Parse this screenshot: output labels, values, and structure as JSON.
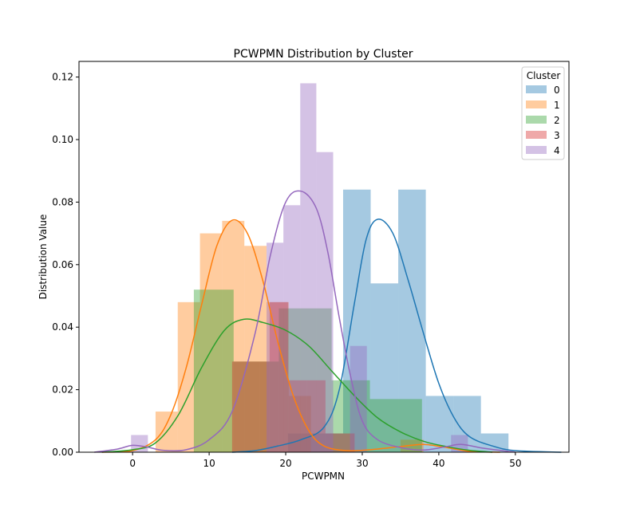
{
  "chart_data": {
    "type": "bar",
    "title": "PCWPMN Distribution by Cluster",
    "xlabel": "PCWPMN",
    "ylabel": "Distribution Value",
    "xlim": [
      -7,
      57
    ],
    "ylim": [
      0,
      0.125
    ],
    "x_ticks": [
      0,
      10,
      20,
      30,
      40,
      50
    ],
    "y_ticks": [
      0.0,
      0.02,
      0.04,
      0.06,
      0.08,
      0.1,
      0.12
    ],
    "grid": false,
    "legend_title": "Cluster",
    "legend_placement": "top-right",
    "series": [
      {
        "name": "0",
        "color": "#1f77b4",
        "bars": [
          {
            "x0": 13.0,
            "x1": 16.7,
            "y": 0.0
          },
          {
            "x0": 16.7,
            "x1": 20.3,
            "y": 0.0
          },
          {
            "x0": 20.3,
            "x1": 23.9,
            "y": 0.006
          },
          {
            "x0": 23.9,
            "x1": 27.5,
            "y": 0.006
          },
          {
            "x0": 27.5,
            "x1": 31.1,
            "y": 0.084
          },
          {
            "x0": 31.1,
            "x1": 34.7,
            "y": 0.054
          },
          {
            "x0": 34.7,
            "x1": 38.3,
            "y": 0.084
          },
          {
            "x0": 38.3,
            "x1": 41.9,
            "y": 0.018
          },
          {
            "x0": 41.9,
            "x1": 45.5,
            "y": 0.018
          },
          {
            "x0": 45.5,
            "x1": 49.1,
            "y": 0.006
          }
        ],
        "kde": [
          [
            13,
            0
          ],
          [
            16,
            0.0005
          ],
          [
            19,
            0.002
          ],
          [
            22,
            0.004
          ],
          [
            25,
            0.008
          ],
          [
            27,
            0.02
          ],
          [
            29,
            0.048
          ],
          [
            30.5,
            0.068
          ],
          [
            32,
            0.0745
          ],
          [
            34,
            0.07
          ],
          [
            36,
            0.055
          ],
          [
            38,
            0.038
          ],
          [
            40,
            0.022
          ],
          [
            42,
            0.011
          ],
          [
            44,
            0.005
          ],
          [
            47,
            0.002
          ],
          [
            50,
            0.0005
          ],
          [
            56,
            0
          ]
        ]
      },
      {
        "name": "1",
        "color": "#ff7f0e",
        "bars": [
          {
            "x0": 3.0,
            "x1": 5.9,
            "y": 0.013
          },
          {
            "x0": 5.9,
            "x1": 8.8,
            "y": 0.048
          },
          {
            "x0": 8.8,
            "x1": 11.7,
            "y": 0.07
          },
          {
            "x0": 11.7,
            "x1": 14.6,
            "y": 0.074
          },
          {
            "x0": 14.6,
            "x1": 17.5,
            "y": 0.066
          },
          {
            "x0": 17.5,
            "x1": 20.4,
            "y": 0.048
          },
          {
            "x0": 20.4,
            "x1": 23.3,
            "y": 0.018
          },
          {
            "x0": 35.0,
            "x1": 38.0,
            "y": 0.004
          }
        ],
        "kde": [
          [
            -4,
            0
          ],
          [
            0,
            0.0005
          ],
          [
            3,
            0.004
          ],
          [
            5,
            0.012
          ],
          [
            7,
            0.027
          ],
          [
            9,
            0.047
          ],
          [
            11,
            0.066
          ],
          [
            13,
            0.0742
          ],
          [
            15,
            0.07
          ],
          [
            17,
            0.055
          ],
          [
            19,
            0.035
          ],
          [
            21,
            0.018
          ],
          [
            23,
            0.007
          ],
          [
            25,
            0.002
          ],
          [
            28,
            0.0005
          ],
          [
            31,
            0.0008
          ],
          [
            35,
            0.0018
          ],
          [
            38,
            0.0025
          ],
          [
            41,
            0.0015
          ],
          [
            44,
            0.0003
          ],
          [
            48,
            0
          ]
        ]
      },
      {
        "name": "2",
        "color": "#2ca02c",
        "bars": [
          {
            "x0": 8.0,
            "x1": 13.2,
            "y": 0.052
          },
          {
            "x0": 13.2,
            "x1": 16.6,
            "y": 0.029
          },
          {
            "x0": 16.6,
            "x1": 19.1,
            "y": 0.029
          },
          {
            "x0": 19.1,
            "x1": 22.6,
            "y": 0.046
          },
          {
            "x0": 22.6,
            "x1": 26.0,
            "y": 0.046
          },
          {
            "x0": 26.0,
            "x1": 28.4,
            "y": 0.023
          },
          {
            "x0": 28.4,
            "x1": 31.0,
            "y": 0.023
          },
          {
            "x0": 31.0,
            "x1": 37.8,
            "y": 0.017
          }
        ],
        "kde": [
          [
            -4,
            0
          ],
          [
            0,
            0.0008
          ],
          [
            3,
            0.003
          ],
          [
            6,
            0.012
          ],
          [
            9,
            0.027
          ],
          [
            12,
            0.039
          ],
          [
            14.5,
            0.0425
          ],
          [
            17,
            0.0415
          ],
          [
            20,
            0.039
          ],
          [
            23,
            0.034
          ],
          [
            26,
            0.026
          ],
          [
            29,
            0.018
          ],
          [
            32,
            0.011
          ],
          [
            35,
            0.0065
          ],
          [
            38,
            0.0035
          ],
          [
            41,
            0.0018
          ],
          [
            44,
            0.0006
          ],
          [
            47,
            0
          ]
        ]
      },
      {
        "name": "3",
        "color": "#d62728",
        "bars": [
          {
            "x0": 13.0,
            "x1": 17.9,
            "y": 0.029
          },
          {
            "x0": 17.9,
            "x1": 20.3,
            "y": 0.048
          },
          {
            "x0": 20.3,
            "x1": 22.8,
            "y": 0.023
          },
          {
            "x0": 22.8,
            "x1": 25.2,
            "y": 0.023
          },
          {
            "x0": 25.2,
            "x1": 29.0,
            "y": 0.006
          }
        ],
        "kde": []
      },
      {
        "name": "4",
        "color": "#9467bd",
        "bars": [
          {
            "x0": -0.2,
            "x1": 2.0,
            "y": 0.0055
          },
          {
            "x0": 17.5,
            "x1": 19.7,
            "y": 0.067
          },
          {
            "x0": 19.7,
            "x1": 21.9,
            "y": 0.079
          },
          {
            "x0": 21.9,
            "x1": 24.0,
            "y": 0.118
          },
          {
            "x0": 24.0,
            "x1": 26.2,
            "y": 0.096
          },
          {
            "x0": 28.4,
            "x1": 30.6,
            "y": 0.034
          },
          {
            "x0": 41.6,
            "x1": 43.8,
            "y": 0.0055
          }
        ],
        "kde": [
          [
            -5,
            0
          ],
          [
            -2,
            0.001
          ],
          [
            0,
            0.0022
          ],
          [
            2,
            0.0016
          ],
          [
            4,
            0.0006
          ],
          [
            7,
            0.0008
          ],
          [
            10,
            0.004
          ],
          [
            13,
            0.013
          ],
          [
            16,
            0.038
          ],
          [
            18,
            0.063
          ],
          [
            20,
            0.08
          ],
          [
            22,
            0.0835
          ],
          [
            24,
            0.078
          ],
          [
            25.5,
            0.064
          ],
          [
            27,
            0.043
          ],
          [
            28.5,
            0.024
          ],
          [
            30,
            0.01
          ],
          [
            32,
            0.004
          ],
          [
            35,
            0.0015
          ],
          [
            38,
            0.0007
          ],
          [
            41,
            0.0018
          ],
          [
            43,
            0.0025
          ],
          [
            46,
            0.0012
          ],
          [
            50,
            0
          ]
        ]
      }
    ]
  }
}
